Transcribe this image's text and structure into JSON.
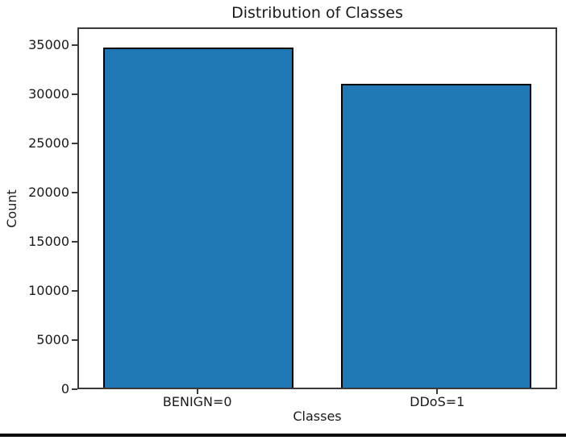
{
  "chart_data": {
    "type": "bar",
    "title": "Distribution of Classes",
    "xlabel": "Classes",
    "ylabel": "Count",
    "categories": [
      "BENIGN=0",
      "DDoS=1"
    ],
    "values": [
      34900,
      31200
    ],
    "ylim": [
      0,
      36800
    ],
    "yticks": [
      0,
      5000,
      10000,
      15000,
      20000,
      25000,
      30000,
      35000
    ],
    "bar_color": "#1f77b4",
    "bar_edge_color": "#000000",
    "bar_relative_width": 0.8,
    "grid": false,
    "legend": "none",
    "spine_color": "#3a3a3a"
  },
  "page": {
    "background_color": "#ffffff",
    "bottom_border_color": "#0a0a0a"
  }
}
